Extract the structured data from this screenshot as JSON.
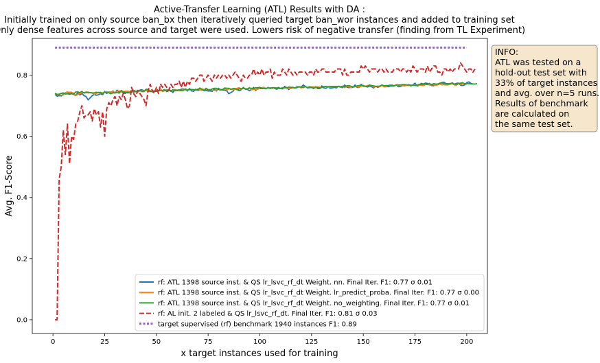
{
  "chart_data": {
    "type": "line",
    "title_lines": [
      "Active-Transfer Learning (ATL) Results with DA :",
      "Initially trained on only source ban_bx then iteratively queried target ban_wor instances and added to training set",
      "Only dense features across source and target were used. Lowers risk of negative transfer (finding from TL Experiment)"
    ],
    "xlabel": "x target instances used for training",
    "ylabel": "Avg. F1-Score",
    "xlim": [
      -10,
      210
    ],
    "ylim": [
      -0.045,
      0.92
    ],
    "xticks": [
      0,
      25,
      50,
      75,
      100,
      125,
      150,
      175,
      200
    ],
    "yticks": [
      0.0,
      0.2,
      0.4,
      0.6,
      0.8
    ],
    "ytick_labels": [
      "0.0",
      "0.2",
      "0.4",
      "0.6",
      "0.8"
    ],
    "grid": false,
    "legend_position": "lower-right",
    "x_step": 1,
    "x_start": 1,
    "series": [
      {
        "name": "rf: ATL 1398 source inst. & QS lr_lsvc_rf_dt Weight. nn. Final Iter. F1: 0.77 σ 0.01",
        "color": "#1f77b4",
        "style": "solid",
        "values": [
          0.737,
          0.731,
          0.733,
          0.732,
          0.738,
          0.742,
          0.745,
          0.739,
          0.741,
          0.737,
          0.733,
          0.743,
          0.735,
          0.74,
          0.733,
          0.73,
          0.719,
          0.726,
          0.733,
          0.737,
          0.734,
          0.736,
          0.739,
          0.736,
          0.747,
          0.74,
          0.745,
          0.744,
          0.746,
          0.741,
          0.751,
          0.744,
          0.747,
          0.742,
          0.74,
          0.746,
          0.745,
          0.744,
          0.751,
          0.746,
          0.747,
          0.751,
          0.752,
          0.749,
          0.749,
          0.748,
          0.746,
          0.749,
          0.748,
          0.749,
          0.749,
          0.753,
          0.749,
          0.753,
          0.746,
          0.749,
          0.75,
          0.743,
          0.753,
          0.749,
          0.75,
          0.754,
          0.755,
          0.752,
          0.748,
          0.756,
          0.748,
          0.747,
          0.754,
          0.75,
          0.752,
          0.752,
          0.749,
          0.75,
          0.748,
          0.748,
          0.747,
          0.755,
          0.748,
          0.757,
          0.752,
          0.751,
          0.751,
          0.749,
          0.739,
          0.743,
          0.747,
          0.756,
          0.753,
          0.749,
          0.752,
          0.76,
          0.754,
          0.753,
          0.749,
          0.753,
          0.76,
          0.75,
          0.759,
          0.756,
          0.756,
          0.757,
          0.755,
          0.76,
          0.756,
          0.759,
          0.757,
          0.754,
          0.756,
          0.756,
          0.755,
          0.763,
          0.759,
          0.753,
          0.76,
          0.76,
          0.758,
          0.759,
          0.762,
          0.761,
          0.768,
          0.763,
          0.758,
          0.759,
          0.76,
          0.756,
          0.762,
          0.756,
          0.756,
          0.765,
          0.758,
          0.757,
          0.762,
          0.757,
          0.758,
          0.76,
          0.758,
          0.764,
          0.761,
          0.759,
          0.768,
          0.761,
          0.759,
          0.76,
          0.76,
          0.768,
          0.76,
          0.76,
          0.77,
          0.763,
          0.764,
          0.761,
          0.764,
          0.762,
          0.758,
          0.764,
          0.76,
          0.763,
          0.766,
          0.764,
          0.763,
          0.762,
          0.764,
          0.764,
          0.764,
          0.768,
          0.762,
          0.763,
          0.766,
          0.765,
          0.767,
          0.769,
          0.764,
          0.768,
          0.774,
          0.764,
          0.767,
          0.773,
          0.771,
          0.774,
          0.773,
          0.77,
          0.766,
          0.765,
          0.77,
          0.769,
          0.771,
          0.776,
          0.777,
          0.772,
          0.772,
          0.77,
          0.775,
          0.77,
          0.773,
          0.774,
          0.767,
          0.766,
          0.768,
          0.775,
          0.778,
          0.773,
          0.771,
          0.771
        ]
      },
      {
        "name": "rf: ATL 1398 source inst. & QS lr_lsvc_rf_dt Weight. lr_predict_proba. Final Iter. F1: 0.77 σ 0.00",
        "color": "#ff7f0e",
        "style": "solid",
        "values": [
          0.74,
          0.736,
          0.736,
          0.741,
          0.735,
          0.742,
          0.744,
          0.744,
          0.744,
          0.741,
          0.733,
          0.737,
          0.74,
          0.742,
          0.743,
          0.745,
          0.745,
          0.742,
          0.743,
          0.737,
          0.74,
          0.744,
          0.741,
          0.742,
          0.745,
          0.745,
          0.745,
          0.741,
          0.749,
          0.741,
          0.747,
          0.749,
          0.744,
          0.747,
          0.747,
          0.748,
          0.746,
          0.747,
          0.747,
          0.745,
          0.75,
          0.748,
          0.749,
          0.748,
          0.751,
          0.747,
          0.749,
          0.748,
          0.746,
          0.748,
          0.749,
          0.755,
          0.746,
          0.749,
          0.752,
          0.751,
          0.747,
          0.751,
          0.751,
          0.751,
          0.749,
          0.749,
          0.753,
          0.752,
          0.751,
          0.752,
          0.753,
          0.753,
          0.75,
          0.755,
          0.752,
          0.755,
          0.753,
          0.753,
          0.753,
          0.753,
          0.75,
          0.75,
          0.752,
          0.753,
          0.754,
          0.752,
          0.757,
          0.751,
          0.755,
          0.755,
          0.753,
          0.753,
          0.757,
          0.759,
          0.754,
          0.757,
          0.756,
          0.755,
          0.76,
          0.752,
          0.754,
          0.754,
          0.754,
          0.758,
          0.759,
          0.76,
          0.756,
          0.758,
          0.759,
          0.756,
          0.759,
          0.759,
          0.757,
          0.757,
          0.759,
          0.758,
          0.76,
          0.756,
          0.756,
          0.759,
          0.757,
          0.762,
          0.761,
          0.758,
          0.763,
          0.762,
          0.759,
          0.762,
          0.762,
          0.762,
          0.758,
          0.762,
          0.76,
          0.759,
          0.763,
          0.763,
          0.761,
          0.761,
          0.762,
          0.762,
          0.762,
          0.762,
          0.763,
          0.762,
          0.759,
          0.763,
          0.763,
          0.759,
          0.763,
          0.763,
          0.762,
          0.761,
          0.764,
          0.764,
          0.763,
          0.766,
          0.767,
          0.765,
          0.761,
          0.763,
          0.763,
          0.762,
          0.767,
          0.762,
          0.762,
          0.766,
          0.768,
          0.768,
          0.764,
          0.768,
          0.767,
          0.766,
          0.767,
          0.767,
          0.766,
          0.766,
          0.766,
          0.768,
          0.767,
          0.767,
          0.768,
          0.767,
          0.766,
          0.769,
          0.769,
          0.768,
          0.77,
          0.768,
          0.767,
          0.768,
          0.771,
          0.768,
          0.769,
          0.768,
          0.768,
          0.77,
          0.772,
          0.768,
          0.767,
          0.773,
          0.77,
          0.772,
          0.772,
          0.77
        ]
      },
      {
        "name": "rf: ATL 1398 source inst. & QS lr_lsvc_rf_dt Weight. no_weighting. Final Iter. F1: 0.77 σ 0.01",
        "color": "#2ca02c",
        "style": "solid",
        "values": [
          0.741,
          0.737,
          0.738,
          0.74,
          0.742,
          0.738,
          0.739,
          0.737,
          0.739,
          0.738,
          0.745,
          0.745,
          0.743,
          0.747,
          0.741,
          0.743,
          0.742,
          0.743,
          0.741,
          0.742,
          0.744,
          0.742,
          0.744,
          0.739,
          0.744,
          0.743,
          0.742,
          0.739,
          0.742,
          0.742,
          0.743,
          0.741,
          0.75,
          0.745,
          0.744,
          0.742,
          0.742,
          0.748,
          0.744,
          0.748,
          0.745,
          0.75,
          0.746,
          0.746,
          0.754,
          0.753,
          0.748,
          0.745,
          0.747,
          0.747,
          0.748,
          0.75,
          0.75,
          0.751,
          0.749,
          0.753,
          0.747,
          0.753,
          0.749,
          0.751,
          0.752,
          0.749,
          0.75,
          0.755,
          0.752,
          0.753,
          0.753,
          0.752,
          0.752,
          0.752,
          0.758,
          0.754,
          0.749,
          0.757,
          0.752,
          0.751,
          0.755,
          0.757,
          0.757,
          0.753,
          0.751,
          0.753,
          0.758,
          0.757,
          0.757,
          0.753,
          0.756,
          0.756,
          0.752,
          0.755,
          0.756,
          0.757,
          0.755,
          0.755,
          0.757,
          0.757,
          0.756,
          0.759,
          0.759,
          0.76,
          0.756,
          0.756,
          0.757,
          0.758,
          0.757,
          0.759,
          0.759,
          0.756,
          0.76,
          0.756,
          0.758,
          0.759,
          0.758,
          0.761,
          0.76,
          0.759,
          0.758,
          0.762,
          0.762,
          0.761,
          0.759,
          0.763,
          0.759,
          0.762,
          0.759,
          0.758,
          0.761,
          0.759,
          0.758,
          0.76,
          0.762,
          0.763,
          0.762,
          0.763,
          0.763,
          0.763,
          0.763,
          0.763,
          0.761,
          0.764,
          0.762,
          0.765,
          0.766,
          0.764,
          0.761,
          0.762,
          0.765,
          0.766,
          0.766,
          0.766,
          0.763,
          0.763,
          0.768,
          0.766,
          0.765,
          0.763,
          0.764,
          0.764,
          0.768,
          0.765,
          0.766,
          0.766,
          0.766,
          0.766,
          0.766,
          0.768,
          0.768,
          0.768,
          0.769,
          0.769,
          0.768,
          0.768,
          0.767,
          0.767,
          0.766,
          0.767,
          0.77,
          0.769,
          0.77,
          0.771,
          0.769,
          0.773,
          0.768,
          0.772,
          0.771,
          0.771,
          0.774,
          0.774,
          0.772,
          0.771,
          0.771,
          0.773,
          0.773,
          0.771,
          0.77,
          0.772,
          0.774,
          0.775,
          0.772,
          0.772,
          0.772,
          0.771,
          0.771,
          0.771,
          0.772
        ]
      },
      {
        "name": "rf: AL init. 2 labeled & QS lr_lsvc_rf_dt. Final Iter. F1: 0.81 σ 0.03",
        "color": "#d62728",
        "style": "dashed",
        "values": [
          0.0,
          0.0,
          0.46,
          0.5,
          0.62,
          0.54,
          0.64,
          0.51,
          0.6,
          0.59,
          0.64,
          0.65,
          0.68,
          0.7,
          0.66,
          0.67,
          0.67,
          0.68,
          0.65,
          0.69,
          0.67,
          0.68,
          0.63,
          0.68,
          0.6,
          0.69,
          0.71,
          0.7,
          0.72,
          0.73,
          0.7,
          0.73,
          0.72,
          0.74,
          0.72,
          0.69,
          0.7,
          0.76,
          0.74,
          0.73,
          0.75,
          0.74,
          0.73,
          0.72,
          0.7,
          0.75,
          0.77,
          0.75,
          0.74,
          0.76,
          0.74,
          0.77,
          0.76,
          0.77,
          0.76,
          0.75,
          0.77,
          0.76,
          0.77,
          0.77,
          0.78,
          0.76,
          0.78,
          0.76,
          0.78,
          0.77,
          0.79,
          0.79,
          0.78,
          0.79,
          0.8,
          0.8,
          0.78,
          0.79,
          0.8,
          0.79,
          0.78,
          0.8,
          0.79,
          0.8,
          0.79,
          0.8,
          0.8,
          0.79,
          0.8,
          0.79,
          0.8,
          0.81,
          0.8,
          0.79,
          0.78,
          0.8,
          0.79,
          0.79,
          0.8,
          0.8,
          0.82,
          0.8,
          0.81,
          0.8,
          0.82,
          0.8,
          0.81,
          0.81,
          0.82,
          0.79,
          0.81,
          0.8,
          0.8,
          0.8,
          0.82,
          0.81,
          0.8,
          0.82,
          0.81,
          0.8,
          0.81,
          0.8,
          0.81,
          0.81,
          0.81,
          0.81,
          0.8,
          0.81,
          0.81,
          0.8,
          0.82,
          0.81,
          0.81,
          0.82,
          0.82,
          0.81,
          0.81,
          0.81,
          0.81,
          0.81,
          0.82,
          0.82,
          0.82,
          0.8,
          0.82,
          0.8,
          0.8,
          0.81,
          0.81,
          0.81,
          0.81,
          0.81,
          0.83,
          0.82,
          0.83,
          0.82,
          0.81,
          0.82,
          0.82,
          0.82,
          0.81,
          0.82,
          0.82,
          0.81,
          0.82,
          0.81,
          0.81,
          0.81,
          0.82,
          0.82,
          0.82,
          0.81,
          0.82,
          0.82,
          0.81,
          0.82,
          0.81,
          0.83,
          0.82,
          0.81,
          0.82,
          0.82,
          0.82,
          0.81,
          0.83,
          0.81,
          0.82,
          0.83,
          0.83,
          0.81,
          0.81,
          0.8,
          0.82,
          0.82,
          0.81,
          0.82,
          0.81,
          0.82,
          0.82,
          0.82,
          0.84,
          0.83,
          0.82,
          0.81,
          0.82,
          0.82,
          0.81,
          0.82
        ]
      },
      {
        "name": "target supervised (rf) benchmark 1940 instances F1: 0.89",
        "color": "#9467bd",
        "style": "dotted",
        "values": [
          0.89,
          0.89
        ]
      }
    ]
  },
  "info_box": {
    "lines": [
      "INFO:",
      "ATL was tested on a",
      "hold-out test set with",
      "33% of target instances",
      "and avg. over n=5 runs.",
      "Results of benchmark",
      "are calculated on",
      "the same test set."
    ],
    "bg_color": "#f5e6cc",
    "border_color": "#8f8f8f"
  }
}
